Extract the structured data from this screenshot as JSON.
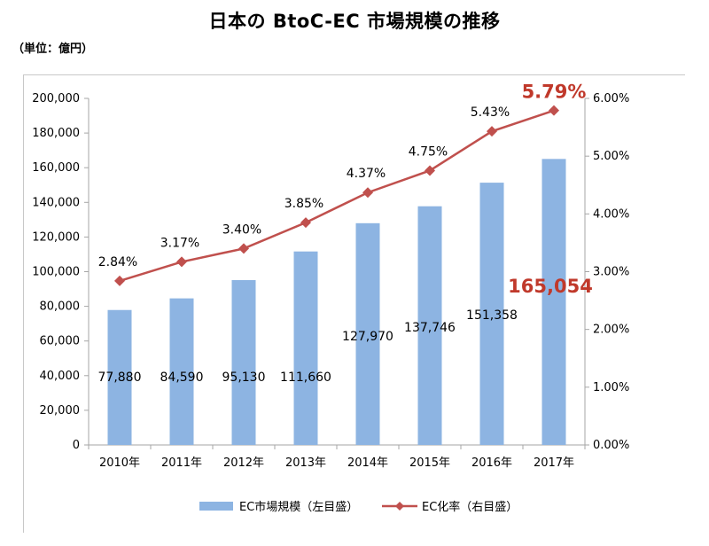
{
  "title": "日本の BtoC-EC 市場規模の推移",
  "unit_label": "（単位：億円）",
  "colors": {
    "bar": "#8db4e2",
    "line": "#c0504d",
    "highlight": "#c0392b",
    "axis": "#a6a6a6"
  },
  "chart_data": {
    "type": "bar",
    "categories": [
      "2010年",
      "2011年",
      "2012年",
      "2013年",
      "2014年",
      "2015年",
      "2016年",
      "2017年"
    ],
    "series": [
      {
        "name": "EC市場規模（左目盛）",
        "type": "bar",
        "axis": "left",
        "values": [
          77880,
          84590,
          95130,
          111660,
          127970,
          137746,
          151358,
          165054
        ],
        "labels": [
          "77,880",
          "84,590",
          "95,130",
          "111,660",
          "127,970",
          "137,746",
          "151,358",
          "165,054"
        ]
      },
      {
        "name": "EC化率（右目盛）",
        "type": "line",
        "axis": "right",
        "values": [
          2.84,
          3.17,
          3.4,
          3.85,
          4.37,
          4.75,
          5.43,
          5.79
        ],
        "labels": [
          "2.84%",
          "3.17%",
          "3.40%",
          "3.85%",
          "4.37%",
          "4.75%",
          "5.43%",
          "5.79%"
        ]
      }
    ],
    "y_left": {
      "ylim": [
        0,
        200000
      ],
      "ticks": [
        0,
        20000,
        40000,
        60000,
        80000,
        100000,
        120000,
        140000,
        160000,
        180000,
        200000
      ],
      "tick_labels": [
        "0",
        "20,000",
        "40,000",
        "60,000",
        "80,000",
        "100,000",
        "120,000",
        "140,000",
        "160,000",
        "180,000",
        "200,000"
      ]
    },
    "y_right": {
      "ylim": [
        0,
        6
      ],
      "ticks": [
        0,
        1,
        2,
        3,
        4,
        5,
        6
      ],
      "tick_labels": [
        "0.00%",
        "1.00%",
        "2.00%",
        "3.00%",
        "4.00%",
        "5.00%",
        "6.00%"
      ]
    },
    "highlight_index": 7,
    "grid": false,
    "legend": "bottom"
  }
}
